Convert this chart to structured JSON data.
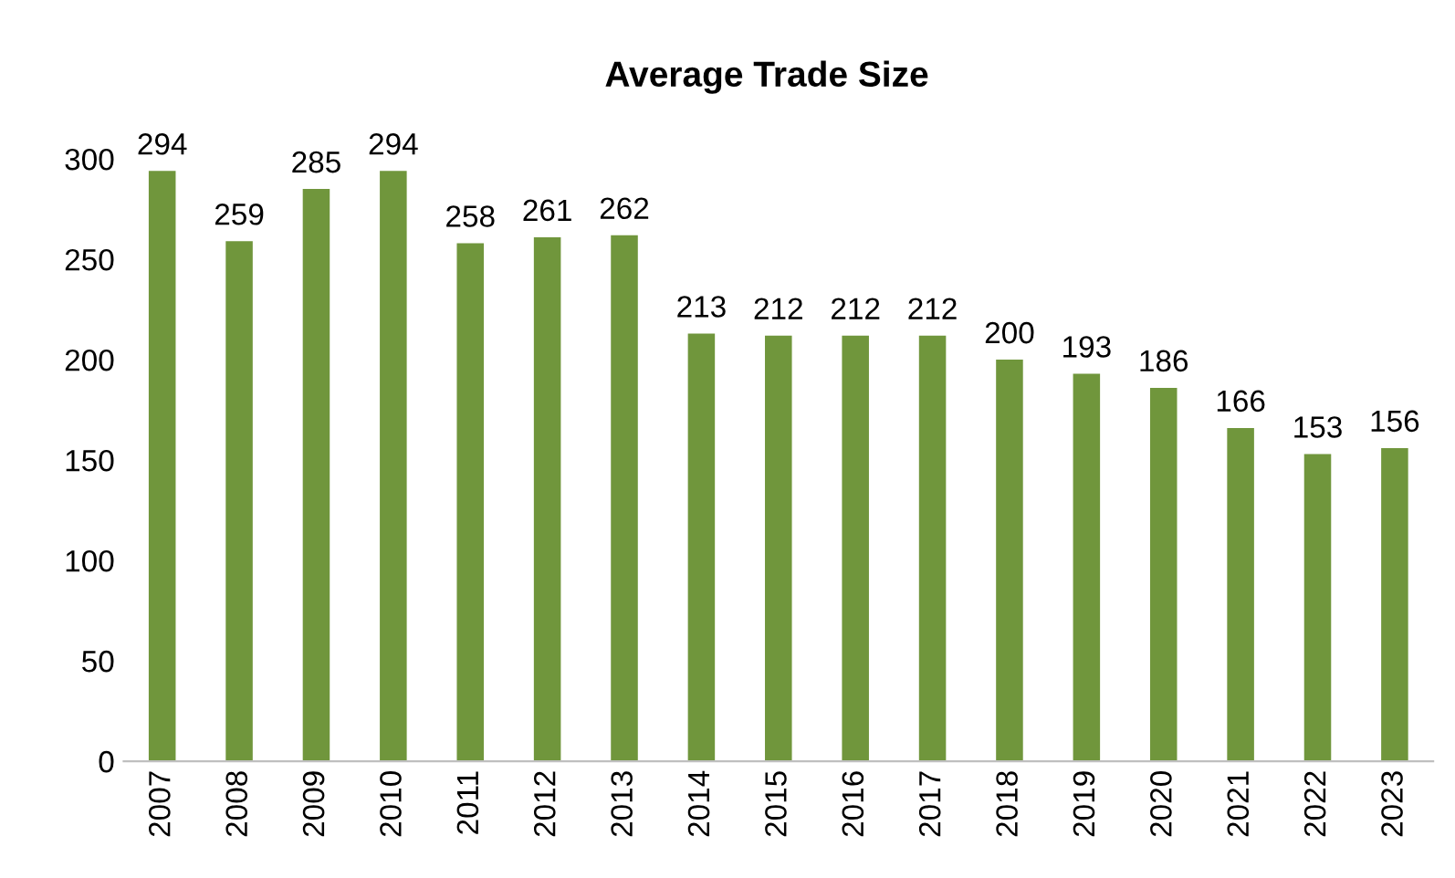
{
  "chart_data": {
    "type": "bar",
    "title": "Average Trade Size",
    "categories": [
      "2007",
      "2008",
      "2009",
      "2010",
      "2011",
      "2012",
      "2013",
      "2014",
      "2015",
      "2016",
      "2017",
      "2018",
      "2019",
      "2020",
      "2021",
      "2022",
      "2023"
    ],
    "values": [
      294,
      259,
      285,
      294,
      258,
      261,
      262,
      213,
      212,
      212,
      212,
      200,
      193,
      186,
      166,
      153,
      156
    ],
    "color": "#70963c",
    "ylim": [
      0,
      300
    ],
    "yticks": [
      0,
      50,
      100,
      150,
      200,
      250,
      300
    ],
    "data_labels": true,
    "grid": false,
    "legend": false
  }
}
